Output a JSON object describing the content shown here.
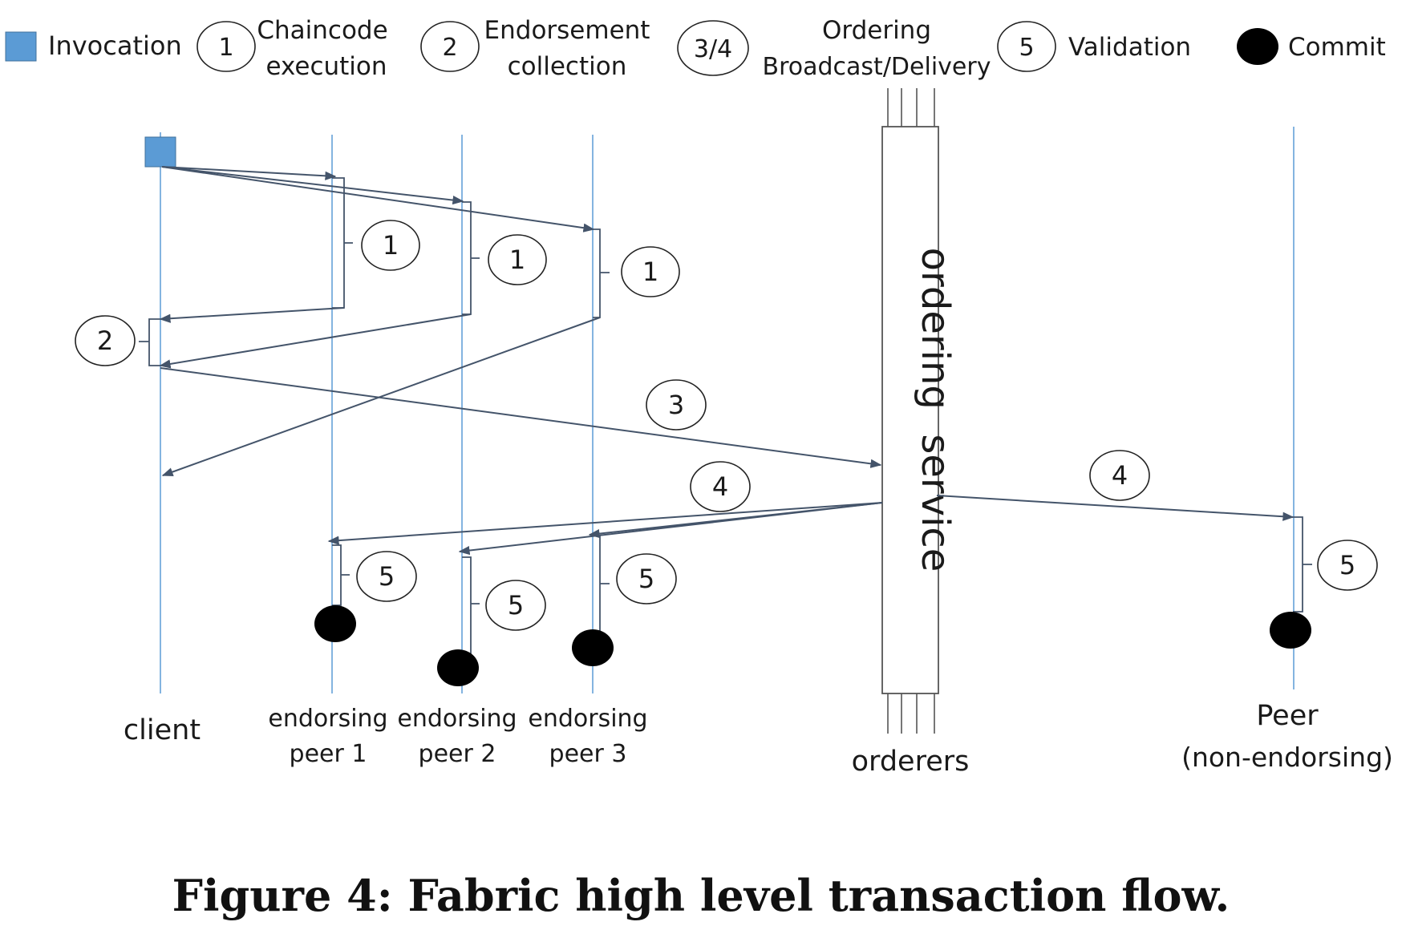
{
  "legend": {
    "invocation": "Invocation",
    "chaincode_marker": "1",
    "chaincode_line1": "Chaincode",
    "chaincode_line2": "execution",
    "endorsement_marker": "2",
    "endorsement_line1": "Endorsement",
    "endorsement_line2": "collection",
    "ordering_marker": "3/4",
    "ordering_line1": "Ordering",
    "ordering_line2": "Broadcast/Delivery",
    "validation_marker": "5",
    "validation": "Validation",
    "commit": "Commit"
  },
  "actors": {
    "client": "client",
    "peer1_line1": "endorsing",
    "peer1_line2": "peer 1",
    "peer2_line1": "endorsing",
    "peer2_line2": "peer 2",
    "peer3_line1": "endorsing",
    "peer3_line2": "peer 3",
    "orderers": "orderers",
    "peer_line1": "Peer",
    "peer_line2": "(non-endorsing)"
  },
  "ordering_service_label": "ordering  service",
  "step_labels": {
    "exec_peer1": "1",
    "exec_peer2": "1",
    "exec_peer3": "1",
    "collect": "2",
    "broadcast": "3",
    "deliver_left": "4",
    "deliver_right": "4",
    "validate_peer1": "5",
    "validate_peer2": "5",
    "validate_peer3": "5",
    "validate_peer": "5"
  },
  "colors": {
    "invocation": "#5b9bd5",
    "lane": "#5b9bd5",
    "arrow": "#44546a",
    "commit": "#000000"
  },
  "caption": "Figure 4: Fabric high level transaction flow."
}
